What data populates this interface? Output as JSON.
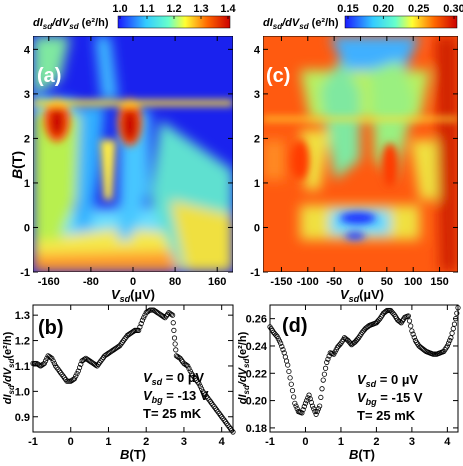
{
  "chart_data": [
    {
      "type": "heatmap",
      "panel_label": "(a)",
      "colorbar": {
        "title": "dI_sd/dV_sd (e²/h)",
        "ticks": [
          "1.0",
          "1.1",
          "1.2",
          "1.3",
          "1.4"
        ],
        "range": [
          1.0,
          1.4
        ]
      },
      "xlabel": "V_sd (µV)",
      "ylabel": "B(T)",
      "x_ticks": [
        "-160",
        "-80",
        "0",
        "80",
        "160"
      ],
      "y_ticks": [
        "-1",
        "0",
        "1",
        "2",
        "3",
        "4"
      ],
      "xlim": [
        -190,
        190
      ],
      "ylim": [
        -1,
        4.3
      ]
    },
    {
      "type": "heatmap",
      "panel_label": "(c)",
      "colorbar": {
        "title": "dI_sd/dV_sd (e²/h)",
        "ticks": [
          "0.15",
          "0.20",
          "0.25",
          "0.30"
        ],
        "range": [
          0.15,
          0.3
        ]
      },
      "xlabel": "V_sd (µV)",
      "x_ticks": [
        "-150",
        "-100",
        "-50",
        "0",
        "50",
        "100",
        "150"
      ],
      "y_ticks": [
        "-1",
        "0",
        "1",
        "2",
        "3",
        "4"
      ],
      "xlim": [
        -185,
        185
      ],
      "ylim": [
        -1,
        4.3
      ]
    },
    {
      "type": "scatter",
      "panel_label": "(b)",
      "xlabel": "B(T)",
      "ylabel": "dI_sd/dV_sd (e²/h)",
      "x_ticks": [
        "-1",
        "0",
        "1",
        "2",
        "3",
        "4"
      ],
      "y_ticks": [
        "0.9",
        "1.0",
        "1.1",
        "1.2",
        "1.3"
      ],
      "xlim": [
        -1,
        4.3
      ],
      "ylim": [
        0.84,
        1.34
      ],
      "annotations": [
        "V_sd = 0 µV",
        "V_bg = -13 V",
        "T= 25 mK"
      ],
      "x": [
        -1.0,
        -0.9,
        -0.8,
        -0.7,
        -0.6,
        -0.5,
        -0.4,
        -0.3,
        -0.2,
        -0.1,
        0.0,
        0.1,
        0.2,
        0.3,
        0.4,
        0.5,
        0.6,
        0.7,
        0.8,
        0.9,
        1.0,
        1.1,
        1.2,
        1.3,
        1.4,
        1.5,
        1.6,
        1.7,
        1.8,
        1.9,
        2.0,
        2.1,
        2.2,
        2.3,
        2.4,
        2.5,
        2.6,
        2.7,
        2.75,
        2.8,
        2.9,
        3.0,
        3.1,
        3.2,
        3.3,
        3.4,
        3.5,
        3.6,
        3.7,
        3.8,
        3.9,
        4.0,
        4.1,
        4.2,
        4.3
      ],
      "y": [
        1.11,
        1.11,
        1.1,
        1.11,
        1.14,
        1.13,
        1.1,
        1.08,
        1.06,
        1.04,
        1.04,
        1.05,
        1.08,
        1.12,
        1.13,
        1.12,
        1.11,
        1.1,
        1.12,
        1.14,
        1.15,
        1.16,
        1.17,
        1.18,
        1.2,
        1.22,
        1.23,
        1.24,
        1.24,
        1.28,
        1.31,
        1.32,
        1.32,
        1.31,
        1.3,
        1.29,
        1.31,
        1.3,
        1.21,
        1.14,
        1.13,
        1.11,
        1.1,
        1.07,
        1.05,
        1.03,
        1.0,
        0.98,
        0.96,
        0.94,
        0.92,
        0.9,
        0.88,
        0.86,
        0.84
      ]
    },
    {
      "type": "scatter",
      "panel_label": "(d)",
      "xlabel": "B(T)",
      "ylabel": "dI_sd/dV_sd (e²/h)",
      "x_ticks": [
        "-1",
        "0",
        "1",
        "2",
        "3",
        "4"
      ],
      "y_ticks": [
        "0.18",
        "0.20",
        "0.22",
        "0.24",
        "0.26"
      ],
      "xlim": [
        -1,
        4.3
      ],
      "ylim": [
        0.177,
        0.27
      ],
      "annotations": [
        "V_sd = 0 µV",
        "V_bg = -15 V",
        "T= 25 mK"
      ],
      "x": [
        -1.0,
        -0.9,
        -0.8,
        -0.7,
        -0.6,
        -0.5,
        -0.4,
        -0.3,
        -0.2,
        -0.1,
        0.0,
        0.1,
        0.2,
        0.3,
        0.4,
        0.5,
        0.6,
        0.7,
        0.8,
        0.9,
        1.0,
        1.1,
        1.2,
        1.3,
        1.4,
        1.5,
        1.6,
        1.7,
        1.8,
        1.9,
        2.0,
        2.1,
        2.2,
        2.3,
        2.4,
        2.5,
        2.6,
        2.7,
        2.8,
        2.9,
        3.0,
        3.1,
        3.2,
        3.3,
        3.4,
        3.5,
        3.6,
        3.7,
        3.8,
        3.9,
        4.0,
        4.1,
        4.2,
        4.3
      ],
      "y": [
        0.254,
        0.25,
        0.247,
        0.242,
        0.235,
        0.226,
        0.212,
        0.198,
        0.192,
        0.191,
        0.198,
        0.204,
        0.196,
        0.19,
        0.196,
        0.215,
        0.228,
        0.235,
        0.234,
        0.239,
        0.242,
        0.246,
        0.244,
        0.241,
        0.243,
        0.246,
        0.25,
        0.253,
        0.255,
        0.256,
        0.257,
        0.26,
        0.264,
        0.266,
        0.266,
        0.263,
        0.259,
        0.257,
        0.261,
        0.262,
        0.251,
        0.244,
        0.24,
        0.238,
        0.236,
        0.235,
        0.234,
        0.234,
        0.235,
        0.236,
        0.24,
        0.246,
        0.256,
        0.268
      ]
    }
  ],
  "colors": {
    "scatter_marker": "#000000",
    "panel_label_heatmap": "#ffffff"
  }
}
